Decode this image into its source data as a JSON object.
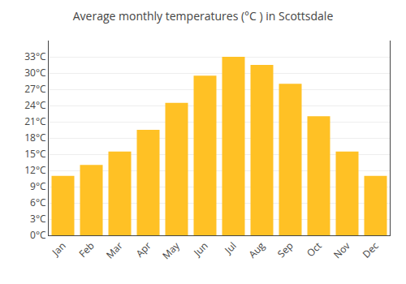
{
  "chart_data": {
    "type": "bar",
    "title": "Average monthly temperatures (°C ) in Scottsdale",
    "categories": [
      "Jan",
      "Feb",
      "Mar",
      "Apr",
      "May",
      "Jun",
      "Jul",
      "Aug",
      "Sep",
      "Oct",
      "Nov",
      "Dec"
    ],
    "values": [
      11,
      13,
      15.5,
      19.5,
      24.5,
      29.5,
      33,
      31.5,
      28,
      22,
      15.5,
      11
    ],
    "color": "#FFC125",
    "ylim": [
      0,
      36
    ],
    "yticks": [
      {
        "value": 0,
        "label": "0°C"
      },
      {
        "value": 3,
        "label": "3°C"
      },
      {
        "value": 6,
        "label": "6°C"
      },
      {
        "value": 9,
        "label": "9°C"
      },
      {
        "value": 12,
        "label": "12°C"
      },
      {
        "value": 15,
        "label": "15°C"
      },
      {
        "value": 18,
        "label": "18°C"
      },
      {
        "value": 21,
        "label": "21°C"
      },
      {
        "value": 24,
        "label": "24°C"
      },
      {
        "value": 27,
        "label": "27°C"
      },
      {
        "value": 30,
        "label": "30°C"
      },
      {
        "value": 33,
        "label": "33°C"
      }
    ],
    "grid": true
  }
}
